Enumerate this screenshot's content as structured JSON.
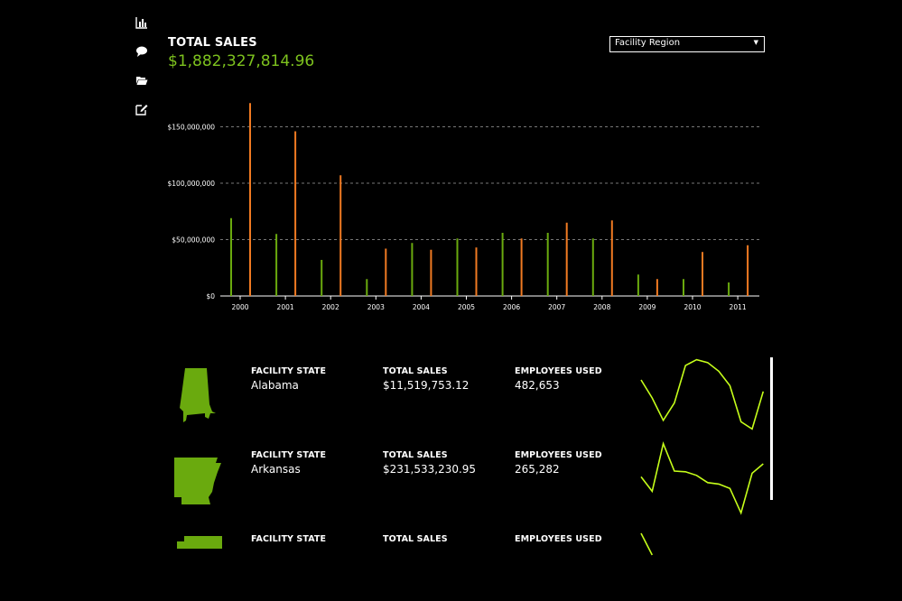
{
  "sidebar": {
    "icons": [
      "bar-chart-icon",
      "comment-icon",
      "folder-open-icon",
      "edit-icon"
    ]
  },
  "header": {
    "title": "TOTAL SALES",
    "total": "$1,882,327,814.96"
  },
  "dropdown": {
    "selected": "Facility Region"
  },
  "colors": {
    "green": "#6aaa0e",
    "orange": "#f07a22",
    "spark": "#c6ff1a"
  },
  "chart_data": {
    "type": "bar",
    "categories": [
      "2000",
      "2001",
      "2002",
      "2003",
      "2004",
      "2005",
      "2006",
      "2007",
      "2008",
      "2009",
      "2010",
      "2011"
    ],
    "series": [
      {
        "values": [
          69000000,
          55000000,
          32000000,
          15000000,
          47000000,
          51000000,
          56000000,
          56000000,
          51000000,
          19000000,
          15000000,
          12000000
        ]
      },
      {
        "values": [
          171000000,
          146000000,
          107000000,
          42000000,
          41000000,
          43000000,
          51000000,
          65000000,
          67000000,
          15000000,
          39000000,
          45000000
        ]
      }
    ],
    "ytick_labels": [
      "$0",
      "$50,000,000",
      "$100,000,000",
      "$150,000,000"
    ],
    "ylim": [
      0,
      150000000
    ],
    "grid": true,
    "grid_style": "dashed horizontal"
  },
  "rows": [
    {
      "state_label": "FACILITY STATE",
      "state": "Alabama",
      "sales_label": "TOTAL SALES",
      "sales": "$11,519,753.12",
      "employees_label": "EMPLOYEES USED",
      "employees": "482,653",
      "trend": [
        0.3,
        0.55,
        0.86,
        0.62,
        0.1,
        0.02,
        0.06,
        0.18,
        0.38,
        0.88,
        0.98,
        0.46
      ]
    },
    {
      "state_label": "FACILITY STATE",
      "state": "Arkansas",
      "sales_label": "TOTAL SALES",
      "sales": "$231,533,230.95",
      "employees_label": "EMPLOYEES USED",
      "employees": "265,282",
      "trend": [
        0.48,
        0.68,
        0.02,
        0.4,
        0.41,
        0.46,
        0.56,
        0.58,
        0.64,
        0.98,
        0.43,
        0.3
      ]
    },
    {
      "state_label": "FACILITY STATE",
      "state": "",
      "sales_label": "TOTAL SALES",
      "sales": "",
      "employees_label": "EMPLOYEES USED",
      "employees": "",
      "trend": [
        0.1,
        0.4
      ]
    }
  ]
}
